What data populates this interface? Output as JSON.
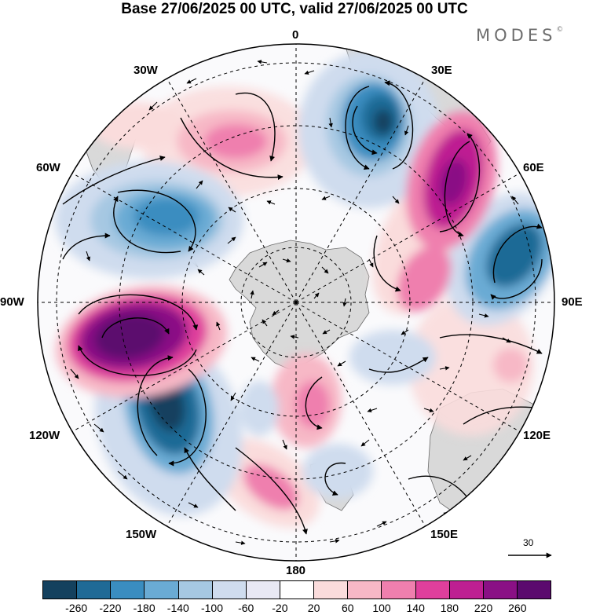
{
  "title": "Base 27/06/2025 00 UTC, valid 27/06/2025 00 UTC",
  "brand": "MODES",
  "brand_mark": "©",
  "map": {
    "projection": "south polar stereographic",
    "longitude_labels": {
      "top": "0",
      "top_right_1": "30E",
      "top_right_2": "60E",
      "right": "90E",
      "bottom_right_1": "120E",
      "bottom_right_2": "150E",
      "bottom": "180",
      "bottom_left_1": "150W",
      "bottom_left_2": "120W",
      "left": "90W",
      "top_left_2": "60W",
      "top_left_1": "30W"
    },
    "reference_vector_label": "30",
    "land_color": "#d9d9d9",
    "coast_color": "#6b6b6b"
  },
  "colorbar": {
    "colors": [
      "#14415e",
      "#1f6a96",
      "#3a8dc0",
      "#6aabd4",
      "#a6c8e2",
      "#cfdcee",
      "#e8e8f4",
      "#ffffff",
      "#fadcdc",
      "#f7b8c6",
      "#ef7fae",
      "#df3f9c",
      "#be1f92",
      "#8a1085",
      "#5b0a6e"
    ],
    "tick_labels": [
      "-260",
      "-220",
      "-180",
      "-140",
      "-100",
      "-60",
      "-20",
      "20",
      "60",
      "100",
      "140",
      "180",
      "220",
      "260"
    ]
  }
}
